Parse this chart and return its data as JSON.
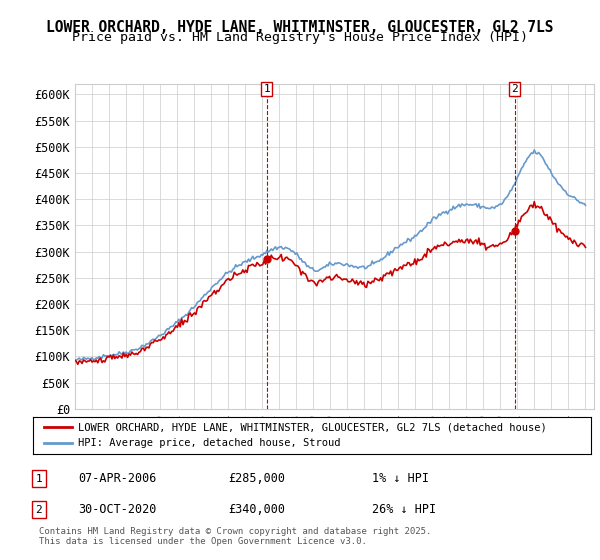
{
  "title": "LOWER ORCHARD, HYDE LANE, WHITMINSTER, GLOUCESTER, GL2 7LS",
  "subtitle": "Price paid vs. HM Land Registry's House Price Index (HPI)",
  "ylabel_ticks": [
    "£0",
    "£50K",
    "£100K",
    "£150K",
    "£200K",
    "£250K",
    "£300K",
    "£350K",
    "£400K",
    "£450K",
    "£500K",
    "£550K",
    "£600K"
  ],
  "ylim": [
    0,
    620000
  ],
  "yticks": [
    0,
    50000,
    100000,
    150000,
    200000,
    250000,
    300000,
    350000,
    400000,
    450000,
    500000,
    550000,
    600000
  ],
  "xlim_start": 1995.0,
  "xlim_end": 2025.5,
  "transaction1_date": 2006.27,
  "transaction1_price": 285000,
  "transaction1_label": "1",
  "transaction2_date": 2020.83,
  "transaction2_price": 340000,
  "transaction2_label": "2",
  "line_color_property": "#cc0000",
  "line_color_hpi": "#6699cc",
  "legend_line1": "LOWER ORCHARD, HYDE LANE, WHITMINSTER, GLOUCESTER, GL2 7LS (detached house)",
  "legend_line2": "HPI: Average price, detached house, Stroud",
  "annotation1": "07-APR-2006",
  "annotation1_price": "£285,000",
  "annotation1_hpi": "1% ↓ HPI",
  "annotation2": "30-OCT-2020",
  "annotation2_price": "£340,000",
  "annotation2_hpi": "26% ↓ HPI",
  "footer": "Contains HM Land Registry data © Crown copyright and database right 2025.\nThis data is licensed under the Open Government Licence v3.0.",
  "bg_color": "#ffffff",
  "grid_color": "#cccccc",
  "title_fontsize": 10.5,
  "subtitle_fontsize": 9.5
}
